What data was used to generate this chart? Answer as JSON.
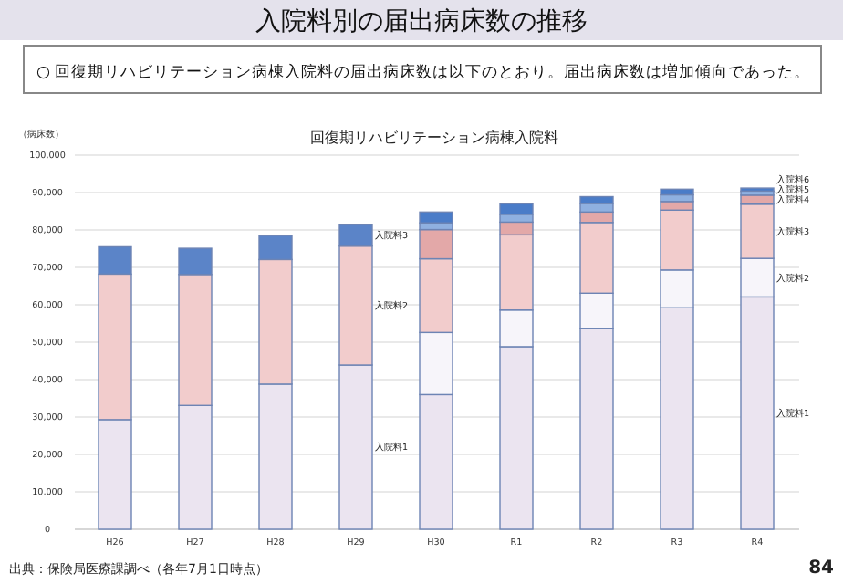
{
  "chart_data": {
    "type": "bar",
    "title": "入院料別の届出病床数の推移",
    "subtitle": "○ 回復期リハビリテーション病棟入院料の届出病床数は以下のとおり。届出病床数は増加傾向であった。",
    "ylabel": "（病床数）",
    "annotations": [
      "回復期リハビリテーション病棟入院料",
      "出典：保険局医療課調べ（各年7月1日時点）",
      "84"
    ],
    "categories": [
      "H26",
      "H27",
      "H28",
      "H29",
      "H30",
      "R1",
      "R2",
      "R3",
      "R4"
    ],
    "stacked": true,
    "grid": "y",
    "legend": false,
    "ylim": [
      0,
      100000
    ],
    "yticks": [
      0,
      {
        "value": 10000,
        "label": "10,000"
      },
      {
        "value": 20000,
        "label": "20,000"
      },
      {
        "value": 30000,
        "label": "30,000"
      },
      {
        "value": 40000,
        "label": "40,000"
      },
      {
        "value": 50000,
        "label": "50,000"
      },
      {
        "value": 60000,
        "label": "60,000"
      },
      {
        "value": 70000,
        "label": "70,000"
      },
      {
        "value": 80000,
        "label": "80,000"
      },
      {
        "value": 90000,
        "label": "90,000"
      },
      {
        "value": 100000,
        "label": "100,000"
      }
    ],
    "series": [
      {
        "name": "入院料1",
        "color": "#ebe4f0",
        "values": [
          29300,
          33100,
          38800,
          43900,
          null,
          null,
          null,
          null,
          null
        ]
      },
      {
        "name": "入院料2",
        "color": "#f2cccc",
        "values": [
          38900,
          35000,
          33300,
          31800,
          null,
          null,
          null,
          null,
          null
        ]
      },
      {
        "name": "入院料3",
        "color": "#5b84c8",
        "values": [
          7300,
          7000,
          6400,
          5700,
          null,
          null,
          null,
          null,
          null
        ]
      },
      {
        "name": "入院料1",
        "color": "#ebe4f0",
        "values": [
          null,
          null,
          null,
          null,
          36000,
          48800,
          53600,
          59200,
          62100
        ]
      },
      {
        "name": "入院料2",
        "color": "#f7f5fa",
        "values": [
          null,
          null,
          null,
          null,
          16600,
          9800,
          9500,
          10100,
          10300
        ]
      },
      {
        "name": "入院料3",
        "color": "#f2cccc",
        "values": [
          null,
          null,
          null,
          null,
          19700,
          20100,
          18900,
          16000,
          14500
        ]
      },
      {
        "name": "入院料4",
        "color": "#e3a8a8",
        "values": [
          null,
          null,
          null,
          null,
          7800,
          3400,
          2800,
          2300,
          2400
        ]
      },
      {
        "name": "入院料5",
        "color": "#8fb0e0",
        "values": [
          null,
          null,
          null,
          null,
          1800,
          2100,
          2300,
          1800,
          1100
        ]
      },
      {
        "name": "入院料6",
        "color": "#4a7cc8",
        "values": [
          null,
          null,
          null,
          null,
          2900,
          2800,
          1800,
          1500,
          800
        ]
      }
    ]
  }
}
